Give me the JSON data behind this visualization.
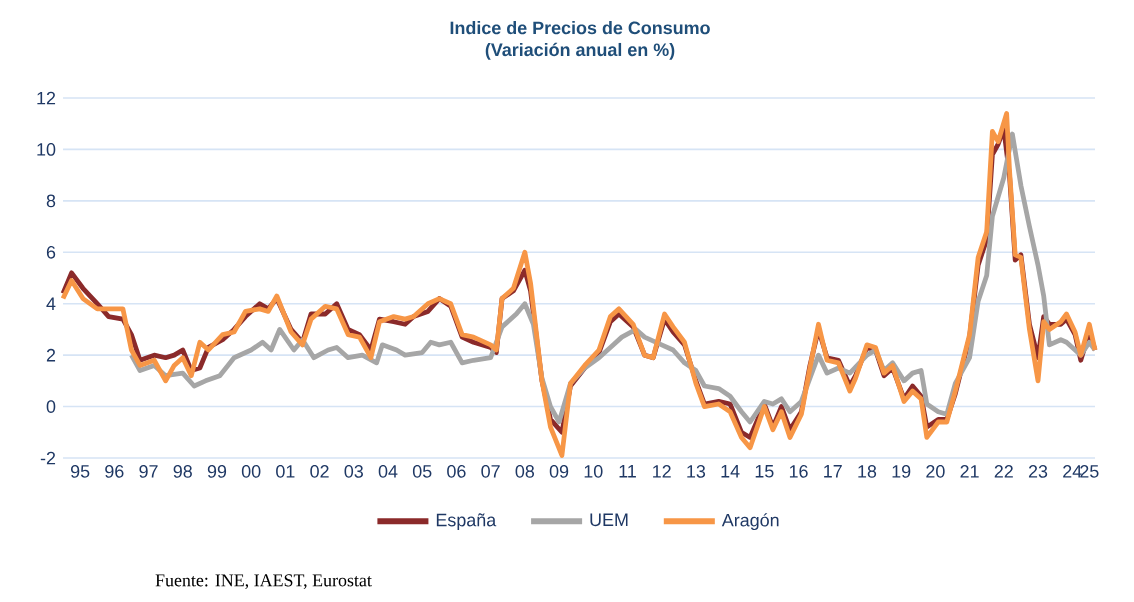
{
  "chart_data": {
    "type": "line",
    "title": "Indice de Precios de Consumo",
    "subtitle": "(Variación anual en %)",
    "xlim": [
      "1995-01",
      "2025-03"
    ],
    "ylim": [
      -2,
      12
    ],
    "yticks": [
      -2,
      0,
      2,
      4,
      6,
      8,
      10,
      12
    ],
    "xticks": [
      {
        "value": "1995-07",
        "label": "95"
      },
      {
        "value": "1996-07",
        "label": "96"
      },
      {
        "value": "1997-07",
        "label": "97"
      },
      {
        "value": "1998-07",
        "label": "98"
      },
      {
        "value": "1999-07",
        "label": "99"
      },
      {
        "value": "2000-07",
        "label": "00"
      },
      {
        "value": "2001-07",
        "label": "01"
      },
      {
        "value": "2002-07",
        "label": "02"
      },
      {
        "value": "2003-07",
        "label": "03"
      },
      {
        "value": "2004-07",
        "label": "04"
      },
      {
        "value": "2005-07",
        "label": "05"
      },
      {
        "value": "2006-07",
        "label": "06"
      },
      {
        "value": "2007-07",
        "label": "07"
      },
      {
        "value": "2008-07",
        "label": "08"
      },
      {
        "value": "2009-07",
        "label": "09"
      },
      {
        "value": "2010-07",
        "label": "10"
      },
      {
        "value": "2011-07",
        "label": "11"
      },
      {
        "value": "2012-07",
        "label": "12"
      },
      {
        "value": "2013-07",
        "label": "13"
      },
      {
        "value": "2014-07",
        "label": "14"
      },
      {
        "value": "2015-07",
        "label": "15"
      },
      {
        "value": "2016-07",
        "label": "16"
      },
      {
        "value": "2017-07",
        "label": "17"
      },
      {
        "value": "2018-07",
        "label": "18"
      },
      {
        "value": "2019-07",
        "label": "19"
      },
      {
        "value": "2020-07",
        "label": "20"
      },
      {
        "value": "2021-07",
        "label": "21"
      },
      {
        "value": "2022-07",
        "label": "22"
      },
      {
        "value": "2023-07",
        "label": "23"
      },
      {
        "value": "2024-07",
        "label": "24"
      },
      {
        "value": "2025-01",
        "label": "25"
      }
    ],
    "grid": "y",
    "legend": "bottom",
    "marker": "none",
    "line_style": "solid",
    "annotations": [
      "Fuente: INE, IAEST, Eurostat"
    ],
    "series": [
      {
        "name": "España",
        "color": "#8b2a2a",
        "x": [
          "1995-01",
          "1995-04",
          "1995-08",
          "1996-01",
          "1996-05",
          "1996-10",
          "1997-01",
          "1997-04",
          "1997-09",
          "1998-01",
          "1998-04",
          "1998-07",
          "1998-10",
          "1999-01",
          "1999-04",
          "1999-09",
          "2000-01",
          "2000-05",
          "2000-10",
          "2001-01",
          "2001-04",
          "2001-09",
          "2002-01",
          "2002-04",
          "2002-09",
          "2003-01",
          "2003-05",
          "2003-09",
          "2004-01",
          "2004-04",
          "2004-09",
          "2005-01",
          "2005-04",
          "2005-09",
          "2006-01",
          "2006-05",
          "2006-09",
          "2007-01",
          "2007-07",
          "2007-09",
          "2007-11",
          "2008-03",
          "2008-07",
          "2008-09",
          "2009-01",
          "2009-04",
          "2009-08",
          "2009-11",
          "2010-04",
          "2010-09",
          "2011-01",
          "2011-04",
          "2011-09",
          "2012-01",
          "2012-04",
          "2012-08",
          "2012-11",
          "2013-03",
          "2013-07",
          "2013-10",
          "2014-03",
          "2014-07",
          "2014-11",
          "2015-02",
          "2015-07",
          "2015-10",
          "2016-01",
          "2016-04",
          "2016-08",
          "2016-11",
          "2017-02",
          "2017-05",
          "2017-09",
          "2018-01",
          "2018-03",
          "2018-07",
          "2018-10",
          "2019-01",
          "2019-04",
          "2019-08",
          "2019-11",
          "2020-02",
          "2020-04",
          "2020-08",
          "2020-11",
          "2021-02",
          "2021-07",
          "2021-10",
          "2022-01",
          "2022-03",
          "2022-05",
          "2022-07",
          "2022-09",
          "2022-11",
          "2023-01",
          "2023-04",
          "2023-07",
          "2023-09",
          "2023-11",
          "2024-03",
          "2024-05",
          "2024-08",
          "2024-10",
          "2025-01",
          "2025-03"
        ],
        "values": [
          4.4,
          5.2,
          4.6,
          4.0,
          3.5,
          3.4,
          2.8,
          1.8,
          2.0,
          1.9,
          2.0,
          2.2,
          1.4,
          1.5,
          2.3,
          2.6,
          3.0,
          3.5,
          4.0,
          3.8,
          4.2,
          3.0,
          2.5,
          3.6,
          3.6,
          4.0,
          3.0,
          2.8,
          2.2,
          3.4,
          3.3,
          3.2,
          3.5,
          3.7,
          4.2,
          3.9,
          2.7,
          2.5,
          2.3,
          2.1,
          4.2,
          4.5,
          5.3,
          4.5,
          1.0,
          -0.5,
          -1.0,
          0.8,
          1.5,
          2.1,
          3.3,
          3.6,
          3.1,
          2.0,
          1.9,
          3.4,
          2.9,
          2.4,
          1.0,
          0.1,
          0.2,
          0.1,
          -1.0,
          -1.2,
          0.1,
          -0.8,
          0.0,
          -0.9,
          -0.2,
          1.6,
          3.0,
          1.9,
          1.8,
          0.8,
          1.2,
          2.3,
          2.2,
          1.2,
          1.5,
          0.3,
          0.8,
          0.4,
          -0.8,
          -0.5,
          -0.5,
          0.5,
          2.7,
          5.5,
          6.5,
          9.8,
          10.2,
          10.8,
          9.0,
          5.7,
          5.9,
          3.2,
          1.9,
          3.5,
          3.2,
          3.2,
          3.4,
          2.8,
          1.8,
          2.9,
          2.2
        ]
      },
      {
        "name": "UEM",
        "color": "#a6a6a6",
        "x": [
          "1997-01",
          "1997-04",
          "1997-09",
          "1998-01",
          "1998-07",
          "1998-11",
          "1999-03",
          "1999-08",
          "2000-01",
          "2000-07",
          "2000-11",
          "2001-02",
          "2001-05",
          "2001-10",
          "2002-01",
          "2002-05",
          "2002-10",
          "2003-01",
          "2003-05",
          "2003-10",
          "2004-03",
          "2004-05",
          "2004-10",
          "2005-01",
          "2005-07",
          "2005-10",
          "2006-01",
          "2006-05",
          "2006-09",
          "2007-01",
          "2007-07",
          "2007-11",
          "2008-04",
          "2008-07",
          "2008-10",
          "2009-01",
          "2009-04",
          "2009-07",
          "2009-11",
          "2010-04",
          "2010-09",
          "2011-01",
          "2011-05",
          "2011-10",
          "2012-01",
          "2012-07",
          "2012-11",
          "2013-03",
          "2013-07",
          "2013-10",
          "2014-03",
          "2014-07",
          "2014-11",
          "2015-02",
          "2015-07",
          "2015-10",
          "2016-01",
          "2016-04",
          "2016-08",
          "2016-11",
          "2017-02",
          "2017-05",
          "2017-09",
          "2018-01",
          "2018-07",
          "2018-10",
          "2019-01",
          "2019-04",
          "2019-08",
          "2019-11",
          "2020-02",
          "2020-04",
          "2020-08",
          "2020-11",
          "2021-02",
          "2021-07",
          "2021-10",
          "2022-01",
          "2022-03",
          "2022-07",
          "2022-10",
          "2023-01",
          "2023-04",
          "2023-07",
          "2023-09",
          "2023-11",
          "2024-03",
          "2024-05",
          "2024-08",
          "2024-10",
          "2025-01",
          "2025-03"
        ],
        "values": [
          2.0,
          1.4,
          1.6,
          1.2,
          1.3,
          0.8,
          1.0,
          1.2,
          1.9,
          2.2,
          2.5,
          2.2,
          3.0,
          2.2,
          2.6,
          1.9,
          2.2,
          2.3,
          1.9,
          2.0,
          1.7,
          2.4,
          2.2,
          2.0,
          2.1,
          2.5,
          2.4,
          2.5,
          1.7,
          1.8,
          1.9,
          3.1,
          3.6,
          4.0,
          3.2,
          1.1,
          0.0,
          -0.6,
          0.9,
          1.5,
          1.9,
          2.3,
          2.7,
          3.0,
          2.7,
          2.4,
          2.2,
          1.7,
          1.4,
          0.8,
          0.7,
          0.4,
          -0.2,
          -0.6,
          0.2,
          0.1,
          0.3,
          -0.2,
          0.2,
          1.1,
          2.0,
          1.3,
          1.5,
          1.3,
          2.0,
          2.2,
          1.4,
          1.7,
          1.0,
          1.3,
          1.4,
          0.1,
          -0.2,
          -0.3,
          0.9,
          1.9,
          4.1,
          5.1,
          7.4,
          8.9,
          10.6,
          8.6,
          7.0,
          5.5,
          4.3,
          2.4,
          2.6,
          2.5,
          2.2,
          2.0,
          2.5,
          2.2
        ]
      },
      {
        "name": "Aragón",
        "color": "#f79646",
        "x": [
          "1995-01",
          "1995-04",
          "1995-08",
          "1996-01",
          "1996-05",
          "1996-10",
          "1997-01",
          "1997-04",
          "1997-09",
          "1998-01",
          "1998-04",
          "1998-07",
          "1998-10",
          "1999-01",
          "1999-04",
          "1999-09",
          "2000-01",
          "2000-05",
          "2000-10",
          "2001-01",
          "2001-04",
          "2001-09",
          "2002-01",
          "2002-04",
          "2002-09",
          "2003-01",
          "2003-05",
          "2003-09",
          "2004-01",
          "2004-04",
          "2004-09",
          "2005-01",
          "2005-04",
          "2005-09",
          "2006-01",
          "2006-05",
          "2006-09",
          "2007-01",
          "2007-07",
          "2007-09",
          "2007-11",
          "2008-03",
          "2008-07",
          "2008-09",
          "2009-01",
          "2009-04",
          "2009-08",
          "2009-11",
          "2010-04",
          "2010-09",
          "2011-01",
          "2011-04",
          "2011-09",
          "2012-01",
          "2012-04",
          "2012-08",
          "2012-11",
          "2013-03",
          "2013-07",
          "2013-10",
          "2014-03",
          "2014-07",
          "2014-11",
          "2015-02",
          "2015-07",
          "2015-10",
          "2016-01",
          "2016-04",
          "2016-08",
          "2016-11",
          "2017-02",
          "2017-05",
          "2017-09",
          "2018-01",
          "2018-03",
          "2018-07",
          "2018-10",
          "2019-01",
          "2019-04",
          "2019-08",
          "2019-11",
          "2020-02",
          "2020-04",
          "2020-08",
          "2020-11",
          "2021-02",
          "2021-07",
          "2021-10",
          "2022-01",
          "2022-03",
          "2022-05",
          "2022-08",
          "2022-09",
          "2022-11",
          "2023-01",
          "2023-04",
          "2023-07",
          "2023-09",
          "2023-11",
          "2024-03",
          "2024-05",
          "2024-08",
          "2024-10",
          "2025-01",
          "2025-03"
        ],
        "values": [
          4.2,
          4.9,
          4.2,
          3.8,
          3.8,
          3.8,
          2.2,
          1.6,
          1.8,
          1.0,
          1.6,
          1.9,
          1.2,
          2.5,
          2.2,
          2.8,
          2.9,
          3.7,
          3.8,
          3.7,
          4.3,
          2.9,
          2.4,
          3.4,
          3.9,
          3.8,
          2.8,
          2.7,
          1.9,
          3.3,
          3.5,
          3.4,
          3.5,
          4.0,
          4.2,
          4.0,
          2.8,
          2.7,
          2.4,
          2.2,
          4.2,
          4.6,
          6.0,
          4.8,
          1.0,
          -0.8,
          -1.9,
          0.9,
          1.6,
          2.2,
          3.5,
          3.8,
          3.2,
          2.0,
          1.9,
          3.6,
          3.1,
          2.5,
          0.9,
          0.0,
          0.1,
          -0.2,
          -1.2,
          -1.6,
          0.0,
          -0.9,
          -0.2,
          -1.2,
          -0.3,
          1.5,
          3.2,
          1.8,
          1.7,
          0.6,
          1.1,
          2.4,
          2.3,
          1.3,
          1.6,
          0.2,
          0.6,
          0.3,
          -1.2,
          -0.6,
          -0.6,
          0.6,
          2.8,
          5.8,
          6.8,
          10.7,
          10.3,
          11.4,
          9.2,
          5.9,
          5.8,
          3.0,
          1.0,
          3.3,
          3.0,
          3.3,
          3.6,
          2.9,
          2.0,
          3.2,
          2.2
        ]
      }
    ]
  }
}
